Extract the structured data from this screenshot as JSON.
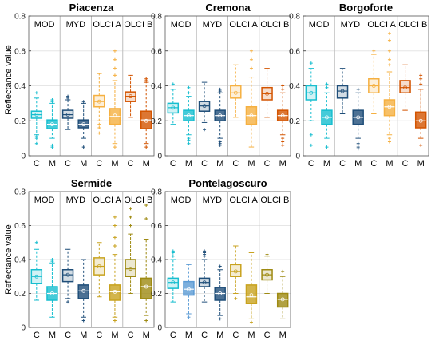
{
  "chart_data": {
    "type": "boxplot",
    "ylabel": "Reflectance value",
    "ylim": [
      0,
      0.8
    ],
    "yticks": [
      "0",
      "0.2",
      "0.4",
      "0.6",
      "0.8"
    ],
    "groups": [
      "MOD",
      "MYD",
      "OLCI A",
      "OLCI B"
    ],
    "categories": [
      "C",
      "M"
    ],
    "colors": {
      "MOD": "#17becf",
      "MYD": "#1f4e79",
      "OLCI A": "#f5b041",
      "OLCI B": "#d35400",
      "grid": "#e6e6e6",
      "separator": "#bdbdbd"
    },
    "panels": [
      {
        "title": "Piacenza",
        "boxes": [
          {
            "group": "MOD",
            "cat": "C",
            "color": "#17becf",
            "min": 0.12,
            "q1": 0.215,
            "median": 0.235,
            "q3": 0.255,
            "max": 0.33,
            "mean": 0.235,
            "outliers": [
              0.07,
              0.1,
              0.11,
              0.36
            ]
          },
          {
            "group": "MOD",
            "cat": "M",
            "color": "#17becf",
            "min": 0.1,
            "q1": 0.155,
            "median": 0.18,
            "q3": 0.205,
            "max": 0.3,
            "mean": 0.18,
            "outliers": [
              0.05,
              0.06,
              0.31,
              0.32
            ]
          },
          {
            "group": "MYD",
            "cat": "C",
            "color": "#1f4e79",
            "min": 0.15,
            "q1": 0.215,
            "median": 0.235,
            "q3": 0.26,
            "max": 0.32,
            "mean": 0.235,
            "outliers": [
              0.33,
              0.34
            ]
          },
          {
            "group": "MYD",
            "cat": "M",
            "color": "#1f4e79",
            "min": 0.1,
            "q1": 0.16,
            "median": 0.18,
            "q3": 0.205,
            "max": 0.3,
            "mean": 0.18,
            "outliers": [
              0.05,
              0.31
            ]
          },
          {
            "group": "OLCI A",
            "cat": "C",
            "color": "#f5b041",
            "min": 0.2,
            "q1": 0.28,
            "median": 0.31,
            "q3": 0.345,
            "max": 0.47,
            "mean": 0.31,
            "outliers": [
              0.13,
              0.16,
              0.18
            ]
          },
          {
            "group": "OLCI A",
            "cat": "M",
            "color": "#f5b041",
            "min": 0.07,
            "q1": 0.18,
            "median": 0.225,
            "q3": 0.27,
            "max": 0.43,
            "mean": 0.23,
            "outliers": [
              0.05,
              0.46,
              0.5,
              0.55,
              0.6
            ]
          },
          {
            "group": "OLCI B",
            "cat": "C",
            "color": "#d35400",
            "min": 0.22,
            "q1": 0.31,
            "median": 0.34,
            "q3": 0.365,
            "max": 0.46,
            "mean": 0.34,
            "outliers": []
          },
          {
            "group": "OLCI B",
            "cat": "M",
            "color": "#d35400",
            "min": 0.07,
            "q1": 0.155,
            "median": 0.205,
            "q3": 0.255,
            "max": 0.42,
            "mean": 0.2,
            "outliers": [
              0.05,
              0.43,
              0.44
            ]
          }
        ]
      },
      {
        "title": "Cremona",
        "boxes": [
          {
            "group": "MOD",
            "cat": "C",
            "color": "#17becf",
            "min": 0.18,
            "q1": 0.245,
            "median": 0.275,
            "q3": 0.3,
            "max": 0.38,
            "mean": 0.275,
            "outliers": [
              0.41
            ]
          },
          {
            "group": "MOD",
            "cat": "M",
            "color": "#17becf",
            "min": 0.12,
            "q1": 0.2,
            "median": 0.23,
            "q3": 0.26,
            "max": 0.34,
            "mean": 0.23,
            "outliers": [
              0.07,
              0.09,
              0.1,
              0.36,
              0.39
            ]
          },
          {
            "group": "MYD",
            "cat": "C",
            "color": "#1f4e79",
            "min": 0.19,
            "q1": 0.255,
            "median": 0.285,
            "q3": 0.31,
            "max": 0.42,
            "mean": 0.285,
            "outliers": [
              0.15
            ]
          },
          {
            "group": "MYD",
            "cat": "M",
            "color": "#1f4e79",
            "min": 0.1,
            "q1": 0.2,
            "median": 0.23,
            "q3": 0.26,
            "max": 0.36,
            "mean": 0.23,
            "outliers": [
              0.06,
              0.07,
              0.08,
              0.37,
              0.38
            ]
          },
          {
            "group": "OLCI A",
            "cat": "C",
            "color": "#f5b041",
            "min": 0.22,
            "q1": 0.33,
            "median": 0.36,
            "q3": 0.4,
            "max": 0.52,
            "mean": 0.36,
            "outliers": []
          },
          {
            "group": "OLCI A",
            "cat": "M",
            "color": "#f5b041",
            "min": 0.05,
            "q1": 0.18,
            "median": 0.23,
            "q3": 0.28,
            "max": 0.45,
            "mean": 0.23,
            "outliers": [
              0.5,
              0.55,
              0.6
            ]
          },
          {
            "group": "OLCI B",
            "cat": "C",
            "color": "#d35400",
            "min": 0.22,
            "q1": 0.32,
            "median": 0.355,
            "q3": 0.39,
            "max": 0.5,
            "mean": 0.355,
            "outliers": []
          },
          {
            "group": "OLCI B",
            "cat": "M",
            "color": "#d35400",
            "min": 0.12,
            "q1": 0.2,
            "median": 0.23,
            "q3": 0.26,
            "max": 0.36,
            "mean": 0.23,
            "outliers": [
              0.06,
              0.08,
              0.1,
              0.38,
              0.4
            ]
          }
        ]
      },
      {
        "title": "Borgoforte",
        "boxes": [
          {
            "group": "MOD",
            "cat": "C",
            "color": "#17becf",
            "min": 0.2,
            "q1": 0.32,
            "median": 0.36,
            "q3": 0.4,
            "max": 0.5,
            "mean": 0.36,
            "outliers": [
              0.06,
              0.12,
              0.53
            ]
          },
          {
            "group": "MOD",
            "cat": "M",
            "color": "#17becf",
            "min": 0.1,
            "q1": 0.18,
            "median": 0.22,
            "q3": 0.26,
            "max": 0.36,
            "mean": 0.22,
            "outliers": [
              0.05,
              0.39,
              0.41
            ]
          },
          {
            "group": "MYD",
            "cat": "C",
            "color": "#1f4e79",
            "min": 0.24,
            "q1": 0.33,
            "median": 0.37,
            "q3": 0.4,
            "max": 0.5,
            "mean": 0.37,
            "outliers": []
          },
          {
            "group": "MYD",
            "cat": "M",
            "color": "#1f4e79",
            "min": 0.1,
            "q1": 0.18,
            "median": 0.22,
            "q3": 0.26,
            "max": 0.36,
            "mean": 0.22,
            "outliers": [
              0.04,
              0.05,
              0.07,
              0.38
            ]
          },
          {
            "group": "OLCI A",
            "cat": "C",
            "color": "#f5b041",
            "min": 0.24,
            "q1": 0.36,
            "median": 0.4,
            "q3": 0.44,
            "max": 0.58,
            "mean": 0.4,
            "outliers": [
              0.6
            ]
          },
          {
            "group": "OLCI A",
            "cat": "M",
            "color": "#f5b041",
            "min": 0.12,
            "q1": 0.23,
            "median": 0.28,
            "q3": 0.32,
            "max": 0.48,
            "mean": 0.28,
            "outliers": [
              0.08,
              0.1,
              0.52,
              0.55,
              0.6,
              0.66,
              0.7
            ]
          },
          {
            "group": "OLCI B",
            "cat": "C",
            "color": "#d35400",
            "min": 0.26,
            "q1": 0.36,
            "median": 0.39,
            "q3": 0.43,
            "max": 0.52,
            "mean": 0.39,
            "outliers": []
          },
          {
            "group": "OLCI B",
            "cat": "M",
            "color": "#d35400",
            "min": 0.1,
            "q1": 0.16,
            "median": 0.2,
            "q3": 0.25,
            "max": 0.38,
            "mean": 0.2,
            "outliers": [
              0.06,
              0.41,
              0.44,
              0.46
            ]
          }
        ]
      },
      {
        "title": "Sermide",
        "boxes": [
          {
            "group": "MOD",
            "cat": "C",
            "color": "#17becf",
            "min": 0.16,
            "q1": 0.26,
            "median": 0.3,
            "q3": 0.34,
            "max": 0.46,
            "mean": 0.3,
            "outliers": [
              0.5
            ]
          },
          {
            "group": "MOD",
            "cat": "M",
            "color": "#17becf",
            "min": 0.06,
            "q1": 0.16,
            "median": 0.2,
            "q3": 0.24,
            "max": 0.38,
            "mean": 0.2,
            "outliers": [
              0.39,
              0.4
            ]
          },
          {
            "group": "MYD",
            "cat": "C",
            "color": "#1f4e79",
            "min": 0.17,
            "q1": 0.27,
            "median": 0.31,
            "q3": 0.34,
            "max": 0.46,
            "mean": 0.31,
            "outliers": [
              0.15
            ]
          },
          {
            "group": "MYD",
            "cat": "M",
            "color": "#1f4e79",
            "min": 0.06,
            "q1": 0.17,
            "median": 0.215,
            "q3": 0.25,
            "max": 0.4,
            "mean": 0.215,
            "outliers": [
              0.04
            ]
          },
          {
            "group": "OLCI A",
            "cat": "C",
            "color": "#c8a21e",
            "min": 0.18,
            "q1": 0.31,
            "median": 0.36,
            "q3": 0.41,
            "max": 0.5,
            "mean": 0.36,
            "outliers": []
          },
          {
            "group": "OLCI A",
            "cat": "M",
            "color": "#c8a21e",
            "min": 0.06,
            "q1": 0.16,
            "median": 0.21,
            "q3": 0.25,
            "max": 0.43,
            "mean": 0.21,
            "outliers": [
              0.04,
              0.48,
              0.53,
              0.6,
              0.65
            ]
          },
          {
            "group": "OLCI B",
            "cat": "C",
            "color": "#9e8a12",
            "min": 0.2,
            "q1": 0.3,
            "median": 0.345,
            "q3": 0.4,
            "max": 0.55,
            "mean": 0.345,
            "outliers": [
              0.6,
              0.65,
              0.7
            ]
          },
          {
            "group": "OLCI B",
            "cat": "M",
            "color": "#9e8a12",
            "min": 0.07,
            "q1": 0.17,
            "median": 0.24,
            "q3": 0.29,
            "max": 0.52,
            "mean": 0.24,
            "outliers": [
              0.04,
              0.64,
              0.72
            ]
          }
        ]
      },
      {
        "title": "Pontelagoscuro",
        "boxes": [
          {
            "group": "MOD",
            "cat": "C",
            "color": "#17becf",
            "min": 0.15,
            "q1": 0.23,
            "median": 0.265,
            "q3": 0.29,
            "max": 0.4,
            "mean": 0.265,
            "outliers": [
              0.42,
              0.44,
              0.45
            ]
          },
          {
            "group": "MOD",
            "cat": "M",
            "color": "#5b9bd5",
            "min": 0.08,
            "q1": 0.19,
            "median": 0.225,
            "q3": 0.27,
            "max": 0.37,
            "mean": 0.225,
            "outliers": [
              0.06
            ]
          },
          {
            "group": "MYD",
            "cat": "C",
            "color": "#1f4e79",
            "min": 0.15,
            "q1": 0.24,
            "median": 0.265,
            "q3": 0.29,
            "max": 0.4,
            "mean": 0.265,
            "outliers": [
              0.42,
              0.43,
              0.44,
              0.45
            ]
          },
          {
            "group": "MYD",
            "cat": "M",
            "color": "#1f4e79",
            "min": 0.07,
            "q1": 0.16,
            "median": 0.2,
            "q3": 0.235,
            "max": 0.34,
            "mean": 0.2,
            "outliers": [
              0.05,
              0.36
            ]
          },
          {
            "group": "OLCI A",
            "cat": "C",
            "color": "#c8a21e",
            "min": 0.2,
            "q1": 0.3,
            "median": 0.33,
            "q3": 0.37,
            "max": 0.48,
            "mean": 0.33,
            "outliers": [
              0.17
            ]
          },
          {
            "group": "OLCI A",
            "cat": "M",
            "color": "#c8a21e",
            "min": 0.05,
            "q1": 0.14,
            "median": 0.18,
            "q3": 0.25,
            "max": 0.44,
            "mean": 0.19,
            "outliers": [
              0.03
            ]
          },
          {
            "group": "OLCI B",
            "cat": "C",
            "color": "#9e8a12",
            "min": 0.2,
            "q1": 0.28,
            "median": 0.31,
            "q3": 0.34,
            "max": 0.42,
            "mean": 0.31,
            "outliers": [
              0.43
            ]
          },
          {
            "group": "OLCI B",
            "cat": "M",
            "color": "#9e8a12",
            "min": 0.05,
            "q1": 0.12,
            "median": 0.165,
            "q3": 0.2,
            "max": 0.3,
            "mean": 0.165,
            "outliers": [
              0.33
            ]
          }
        ]
      }
    ]
  }
}
